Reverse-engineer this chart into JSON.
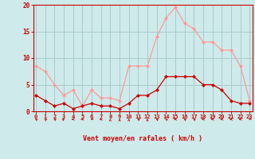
{
  "x": [
    0,
    1,
    2,
    3,
    4,
    5,
    6,
    7,
    8,
    9,
    10,
    11,
    12,
    13,
    14,
    15,
    16,
    17,
    18,
    19,
    20,
    21,
    22,
    23
  ],
  "wind_avg": [
    3,
    2,
    1,
    1.5,
    0.5,
    1,
    1.5,
    1,
    1,
    0.5,
    1.5,
    3,
    3,
    4,
    6.5,
    6.5,
    6.5,
    6.5,
    5,
    5,
    4,
    2,
    1.5,
    1.5
  ],
  "wind_gust": [
    8.5,
    7.5,
    5,
    3,
    4,
    1,
    4,
    2.5,
    2.5,
    2,
    8.5,
    8.5,
    8.5,
    14,
    17.5,
    19.5,
    16.5,
    15.5,
    13,
    13,
    11.5,
    11.5,
    8.5,
    2
  ],
  "line_color_avg": "#cc0000",
  "line_color_gust": "#ff9999",
  "bg_color": "#ceeaea",
  "grid_color": "#aacccc",
  "axis_color": "#cc0000",
  "xlabel": "Vent moyen/en rafales ( km/h )",
  "ylim": [
    0,
    20
  ],
  "yticks": [
    0,
    5,
    10,
    15,
    20
  ],
  "xlim": [
    -0.3,
    23.3
  ],
  "arrow_angles": [
    225,
    210,
    225,
    135,
    270,
    270,
    315,
    270,
    180,
    180,
    180,
    225,
    180,
    225,
    225,
    270,
    225,
    225,
    270,
    270,
    270,
    270,
    270,
    315
  ]
}
